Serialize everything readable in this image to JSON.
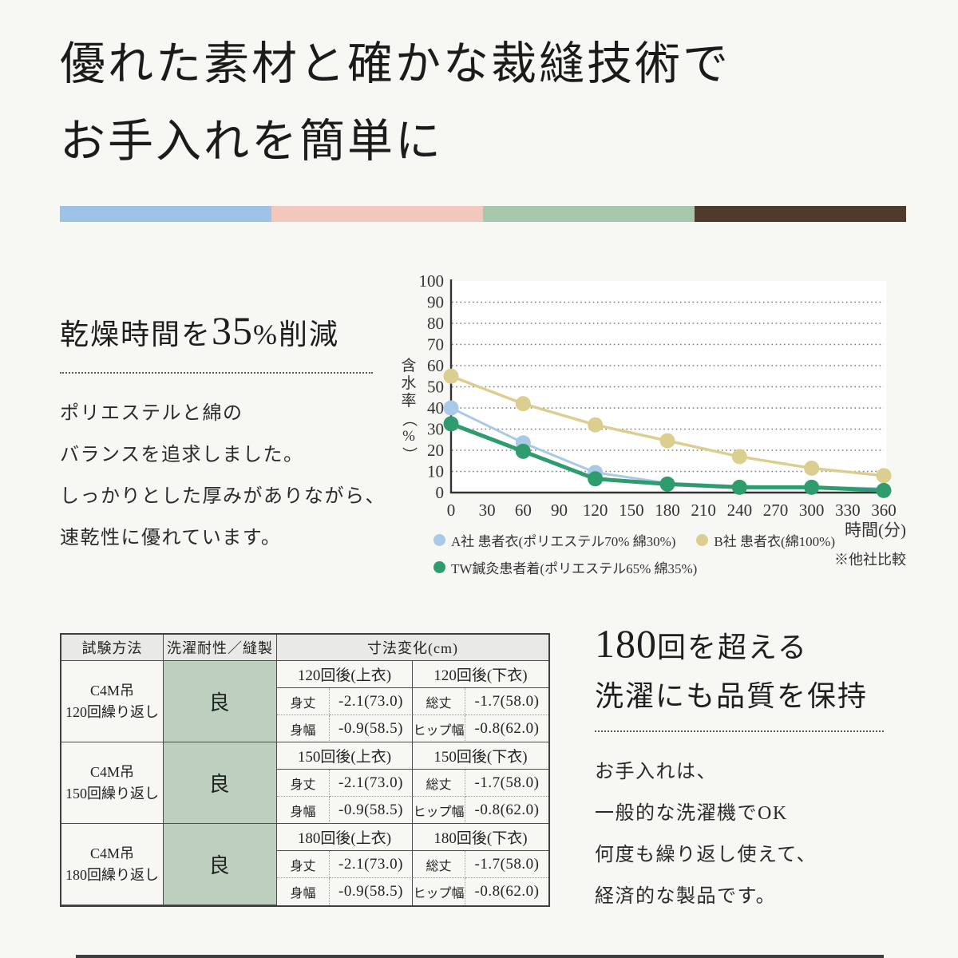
{
  "title": {
    "line1": "優れた素材と確かな裁縫技術で",
    "line2": "お手入れを簡単に"
  },
  "divider_colors": [
    "#9dc3e6",
    "#f2c7bc",
    "#a6c7ac",
    "#4e3b2b"
  ],
  "drying_section": {
    "heading_prefix": "乾燥時間を",
    "heading_number": "35",
    "heading_suffix": "%削減",
    "paragraph_lines": [
      "ポリエステルと綿の",
      "バランスを追求しました。",
      "しっかりとした厚みがありながら、",
      "速乾性に優れています。"
    ]
  },
  "chart_data": {
    "type": "line",
    "title": "",
    "ylabel": "含水率（%）",
    "xlabel": "時間(分)",
    "note": "※他社比較",
    "ylim": [
      0,
      100
    ],
    "yticks": [
      0,
      10,
      20,
      30,
      40,
      50,
      60,
      70,
      80,
      90,
      100
    ],
    "xticks": [
      0,
      30,
      60,
      90,
      120,
      150,
      180,
      210,
      240,
      270,
      300,
      330,
      360
    ],
    "x": [
      0,
      60,
      120,
      180,
      240,
      300,
      360
    ],
    "series": [
      {
        "name": "A社 患者衣(ポリエステル70% 綿30%)",
        "color": "#a9c9e8",
        "line_width": 3,
        "marker_count": 3,
        "values": [
          40,
          23.5,
          9.5,
          4.5,
          3,
          2.5,
          2
        ]
      },
      {
        "name": "B社 患者衣(綿100%)",
        "color": "#dbce8f",
        "line_width": 3.5,
        "marker_count": 7,
        "values": [
          55,
          42,
          32,
          24.5,
          17,
          11.5,
          8
        ]
      },
      {
        "name": "TW鍼灸患者着(ポリエステル65% 綿35%)",
        "color": "#2f9c6d",
        "line_width": 5,
        "marker_count": 7,
        "values": [
          32.5,
          19.5,
          6.5,
          4,
          2.5,
          2.5,
          1
        ]
      }
    ],
    "grid": "horizontal dotted",
    "legend_position": "below"
  },
  "spec_table": {
    "headers": {
      "method": "試験方法",
      "durability": "洗濯耐性／縫製",
      "dimension": "寸法変化(cm)"
    },
    "groups": [
      {
        "method_line1": "C4M吊",
        "method_line2": "120回繰り返し",
        "durability": "良",
        "upper_header": "120回後(上衣)",
        "lower_header": "120回後(下衣)",
        "rows": [
          {
            "l1": "身丈",
            "v1": "-2.1(73.0)",
            "l2": "総丈",
            "v2": "-1.7(58.0)"
          },
          {
            "l1": "身幅",
            "v1": "-0.9(58.5)",
            "l2": "ヒップ幅",
            "v2": "-0.8(62.0)"
          }
        ]
      },
      {
        "method_line1": "C4M吊",
        "method_line2": "150回繰り返し",
        "durability": "良",
        "upper_header": "150回後(上衣)",
        "lower_header": "150回後(下衣)",
        "rows": [
          {
            "l1": "身丈",
            "v1": "-2.1(73.0)",
            "l2": "総丈",
            "v2": "-1.7(58.0)"
          },
          {
            "l1": "身幅",
            "v1": "-0.9(58.5)",
            "l2": "ヒップ幅",
            "v2": "-0.8(62.0)"
          }
        ]
      },
      {
        "method_line1": "C4M吊",
        "method_line2": "180回繰り返し",
        "durability": "良",
        "upper_header": "180回後(上衣)",
        "lower_header": "180回後(下衣)",
        "rows": [
          {
            "l1": "身丈",
            "v1": "-2.1(73.0)",
            "l2": "総丈",
            "v2": "-1.7(58.0)"
          },
          {
            "l1": "身幅",
            "v1": "-0.9(58.5)",
            "l2": "ヒップ幅",
            "v2": "-0.8(62.0)"
          }
        ]
      }
    ]
  },
  "quality_section": {
    "heading_number": "180",
    "heading_line1_suffix": "回を超える",
    "heading_line2": "洗濯にも品質を保持",
    "paragraph_lines": [
      "お手入れは、",
      "一般的な洗濯機でOK",
      "何度も繰り返し使えて、",
      "経済的な製品です。"
    ]
  }
}
